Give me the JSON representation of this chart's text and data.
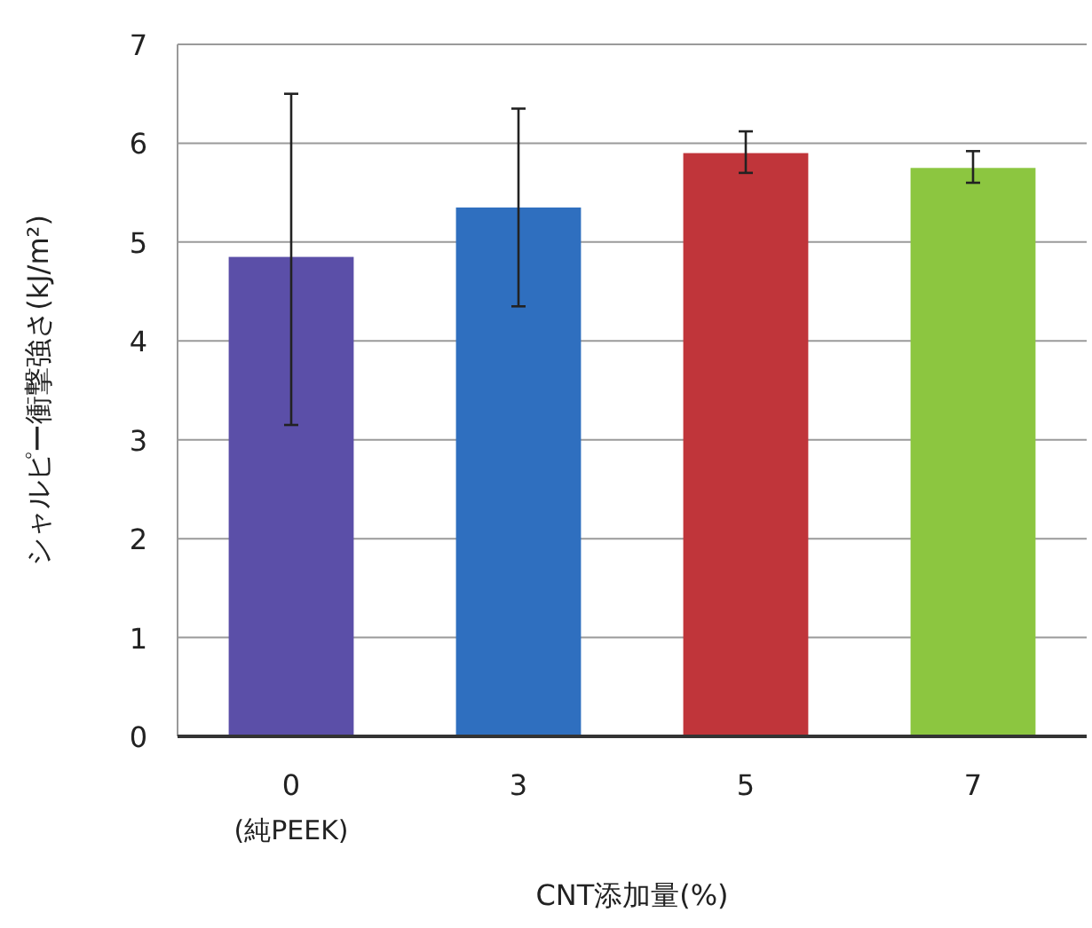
{
  "chart_data": {
    "type": "bar",
    "xlabel": "CNT添加量(%)",
    "ylabel": "シャルピー衝撃強さ(kJ/m²)",
    "categories": [
      "0\n(純PEEK)",
      "3",
      "5",
      "7"
    ],
    "values": [
      4.85,
      5.35,
      5.9,
      5.75
    ],
    "colors": [
      "#5b4fa8",
      "#2f6fbf",
      "#c0353a",
      "#8cc640"
    ],
    "errors": [
      [
        3.15,
        6.5
      ],
      [
        4.35,
        6.35
      ],
      [
        5.7,
        6.12
      ],
      [
        5.6,
        5.92
      ]
    ],
    "ylim": [
      0,
      7
    ],
    "yticks": [
      0,
      1,
      2,
      3,
      4,
      5,
      6,
      7
    ],
    "grid": "y"
  }
}
